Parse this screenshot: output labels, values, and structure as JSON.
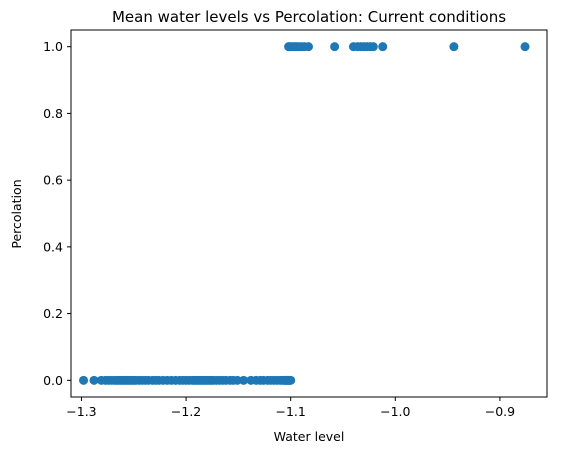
{
  "chart_data": {
    "type": "scatter",
    "title": "Mean water levels vs Percolation: Current conditions",
    "xlabel": "Water level",
    "ylabel": "Percolation",
    "xlim": [
      -1.31,
      -0.855
    ],
    "ylim": [
      -0.05,
      1.05
    ],
    "xticks": [
      -1.3,
      -1.2,
      -1.1,
      -1.0,
      -0.9
    ],
    "xtick_labels": [
      "−1.3",
      "−1.2",
      "−1.1",
      "−1.0",
      "−0.9"
    ],
    "yticks": [
      0.0,
      0.2,
      0.4,
      0.6,
      0.8,
      1.0
    ],
    "ytick_labels": [
      "0.0",
      "0.2",
      "0.4",
      "0.6",
      "0.8",
      "1.0"
    ],
    "grid": false,
    "marker_color": "#1f77b4",
    "series": [
      {
        "x": [
          -1.298,
          -1.288,
          -1.281,
          -1.277,
          -1.274,
          -1.271,
          -1.268,
          -1.266,
          -1.264,
          -1.262,
          -1.26,
          -1.258,
          -1.256,
          -1.254,
          -1.252,
          -1.25,
          -1.248,
          -1.245,
          -1.242,
          -1.239,
          -1.236,
          -1.232,
          -1.229,
          -1.226,
          -1.222,
          -1.218,
          -1.214,
          -1.21,
          -1.206,
          -1.203,
          -1.2,
          -1.197,
          -1.194,
          -1.192,
          -1.19,
          -1.188,
          -1.186,
          -1.184,
          -1.182,
          -1.18,
          -1.178,
          -1.176,
          -1.174,
          -1.171,
          -1.168,
          -1.165,
          -1.162,
          -1.158,
          -1.155,
          -1.151,
          -1.145,
          -1.138,
          -1.133,
          -1.129,
          -1.126,
          -1.122,
          -1.119,
          -1.116,
          -1.113,
          -1.11,
          -1.108,
          -1.106,
          -1.105,
          -1.104,
          -1.103,
          -1.102,
          -1.101,
          -1.1,
          -1.102,
          -1.101,
          -1.099,
          -1.097,
          -1.095,
          -1.093,
          -1.09,
          -1.087,
          -1.083,
          -1.058,
          -1.04,
          -1.036,
          -1.033,
          -1.03,
          -1.027,
          -1.024,
          -1.021,
          -1.012,
          -0.944,
          -0.876
        ],
        "y": [
          0,
          0,
          0,
          0,
          0,
          0,
          0,
          0,
          0,
          0,
          0,
          0,
          0,
          0,
          0,
          0,
          0,
          0,
          0,
          0,
          0,
          0,
          0,
          0,
          0,
          0,
          0,
          0,
          0,
          0,
          0,
          0,
          0,
          0,
          0,
          0,
          0,
          0,
          0,
          0,
          0,
          0,
          0,
          0,
          0,
          0,
          0,
          0,
          0,
          0,
          0,
          0,
          0,
          0,
          0,
          0,
          0,
          0,
          0,
          0,
          0,
          0,
          0,
          0,
          0,
          0,
          0,
          0,
          1,
          1,
          1,
          1,
          1,
          1,
          1,
          1,
          1,
          1,
          1,
          1,
          1,
          1,
          1,
          1,
          1,
          1,
          1,
          1
        ]
      }
    ]
  }
}
